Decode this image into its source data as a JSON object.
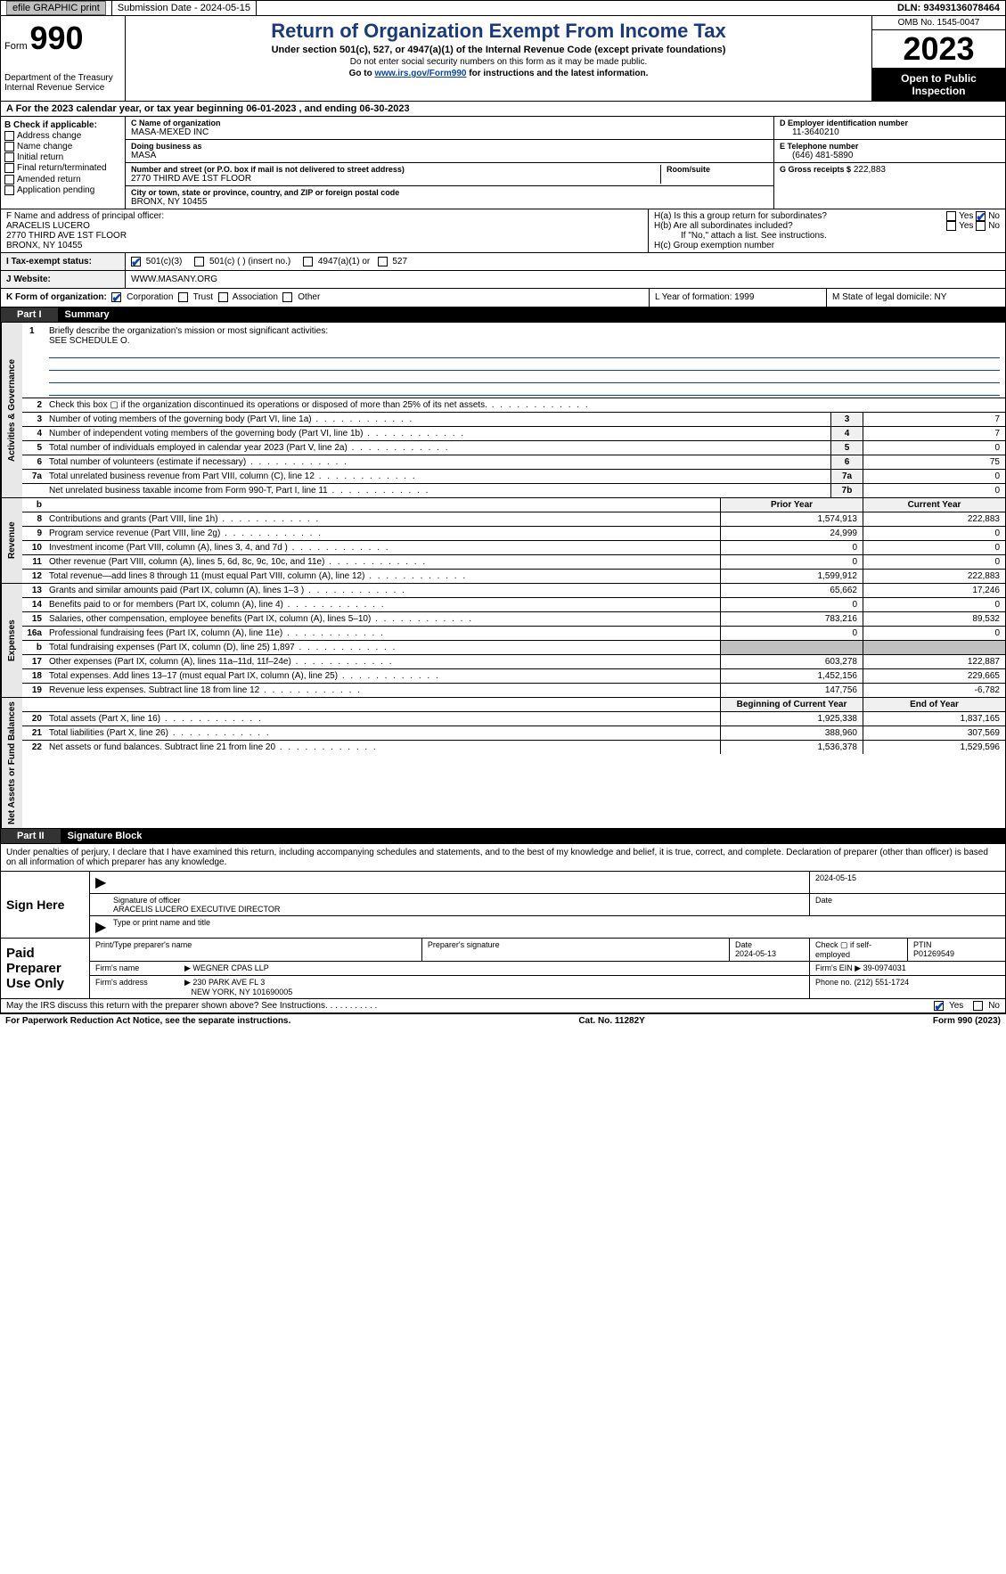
{
  "topbar": {
    "efile_label": "efile GRAPHIC print",
    "submission_label": "Submission Date - 2024-05-15",
    "dln_label": "DLN: 93493136078464"
  },
  "header": {
    "form_word": "Form",
    "form_number": "990",
    "dept": "Department of the Treasury\nInternal Revenue Service",
    "title": "Return of Organization Exempt From Income Tax",
    "subtitle": "Under section 501(c), 527, or 4947(a)(1) of the Internal Revenue Code (except private foundations)",
    "note1": "Do not enter social security numbers on this form as it may be made public.",
    "note2_prefix": "Go to ",
    "note2_link": "www.irs.gov/Form990",
    "note2_suffix": " for instructions and the latest information.",
    "omb": "OMB No. 1545-0047",
    "tax_year": "2023",
    "open_public": "Open to Public Inspection"
  },
  "rowA": "A For the 2023 calendar year, or tax year beginning 06-01-2023    , and ending 06-30-2023",
  "sectionB": {
    "header": "B Check if applicable:",
    "items": [
      "Address change",
      "Name change",
      "Initial return",
      "Final return/terminated",
      "Amended return",
      "Application pending"
    ]
  },
  "sectionC": {
    "name_label": "C Name of organization",
    "name": "MASA-MEXED INC",
    "dba_label": "Doing business as",
    "dba": "MASA",
    "street_label": "Number and street (or P.O. box if mail is not delivered to street address)",
    "street": "2770 THIRD AVE 1ST FLOOR",
    "room_label": "Room/suite",
    "city_label": "City or town, state or province, country, and ZIP or foreign postal code",
    "city": "BRONX, NY  10455"
  },
  "sectionD": {
    "label": "D Employer identification number",
    "value": "11-3640210"
  },
  "sectionE": {
    "label": "E Telephone number",
    "value": "(646) 481-5890"
  },
  "sectionG": {
    "label": "G Gross receipts $",
    "value": "222,883"
  },
  "officer": {
    "label": "F  Name and address of principal officer:",
    "name": "ARACELIS LUCERO",
    "street": "2770 THIRD AVE 1ST FLOOR",
    "city": "BRONX, NY  10455"
  },
  "sectionH": {
    "a": "H(a)  Is this a group return for subordinates?",
    "b": "H(b)  Are all subordinates included?",
    "b_note": "If \"No,\" attach a list. See instructions.",
    "c": "H(c)  Group exemption number",
    "yes": "Yes",
    "no": "No"
  },
  "statusI": {
    "label": "I   Tax-exempt status:",
    "c3": "501(c)(3)",
    "c_other": "501(c) (  ) (insert no.)",
    "a4947": "4947(a)(1) or",
    "s527": "527"
  },
  "website": {
    "label": "J   Website:",
    "value": "WWW.MASANY.ORG"
  },
  "formK": {
    "label": "K Form of organization:",
    "corp": "Corporation",
    "trust": "Trust",
    "assoc": "Association",
    "other": "Other",
    "L": "L Year of formation: 1999",
    "M": "M State of legal domicile: NY"
  },
  "partI": {
    "tab": "Part I",
    "title": "Summary"
  },
  "mission": {
    "n": "1",
    "label": "Briefly describe the organization's mission or most significant activities:",
    "value": "SEE SCHEDULE O."
  },
  "gov_rows": [
    {
      "n": "2",
      "txt": "Check this box ▢ if the organization discontinued its operations or disposed of more than 25% of its net assets.",
      "box": "",
      "val": ""
    },
    {
      "n": "3",
      "txt": "Number of voting members of the governing body (Part VI, line 1a)",
      "box": "3",
      "val": "7"
    },
    {
      "n": "4",
      "txt": "Number of independent voting members of the governing body (Part VI, line 1b)",
      "box": "4",
      "val": "7"
    },
    {
      "n": "5",
      "txt": "Total number of individuals employed in calendar year 2023 (Part V, line 2a)",
      "box": "5",
      "val": "0"
    },
    {
      "n": "6",
      "txt": "Total number of volunteers (estimate if necessary)",
      "box": "6",
      "val": "75"
    },
    {
      "n": "7a",
      "txt": "Total unrelated business revenue from Part VIII, column (C), line 12",
      "box": "7a",
      "val": "0"
    },
    {
      "n": "",
      "txt": "Net unrelated business taxable income from Form 990-T, Part I, line 11",
      "box": "7b",
      "val": "0"
    }
  ],
  "rev_header": {
    "n": "b",
    "txt": "",
    "prior": "Prior Year",
    "curr": "Current Year"
  },
  "rev_rows": [
    {
      "n": "8",
      "txt": "Contributions and grants (Part VIII, line 1h)",
      "prior": "1,574,913",
      "curr": "222,883"
    },
    {
      "n": "9",
      "txt": "Program service revenue (Part VIII, line 2g)",
      "prior": "24,999",
      "curr": "0"
    },
    {
      "n": "10",
      "txt": "Investment income (Part VIII, column (A), lines 3, 4, and 7d )",
      "prior": "0",
      "curr": "0"
    },
    {
      "n": "11",
      "txt": "Other revenue (Part VIII, column (A), lines 5, 6d, 8c, 9c, 10c, and 11e)",
      "prior": "0",
      "curr": "0"
    },
    {
      "n": "12",
      "txt": "Total revenue—add lines 8 through 11 (must equal Part VIII, column (A), line 12)",
      "prior": "1,599,912",
      "curr": "222,883"
    }
  ],
  "exp_rows": [
    {
      "n": "13",
      "txt": "Grants and similar amounts paid (Part IX, column (A), lines 1–3 )",
      "prior": "65,662",
      "curr": "17,246"
    },
    {
      "n": "14",
      "txt": "Benefits paid to or for members (Part IX, column (A), line 4)",
      "prior": "0",
      "curr": "0"
    },
    {
      "n": "15",
      "txt": "Salaries, other compensation, employee benefits (Part IX, column (A), lines 5–10)",
      "prior": "783,216",
      "curr": "89,532"
    },
    {
      "n": "16a",
      "txt": "Professional fundraising fees (Part IX, column (A), line 11e)",
      "prior": "0",
      "curr": "0"
    },
    {
      "n": "b",
      "txt": "Total fundraising expenses (Part IX, column (D), line 25) 1,897",
      "prior": "",
      "curr": "",
      "shade": true
    },
    {
      "n": "17",
      "txt": "Other expenses (Part IX, column (A), lines 11a–11d, 11f–24e)",
      "prior": "603,278",
      "curr": "122,887"
    },
    {
      "n": "18",
      "txt": "Total expenses. Add lines 13–17 (must equal Part IX, column (A), line 25)",
      "prior": "1,452,156",
      "curr": "229,665"
    },
    {
      "n": "19",
      "txt": "Revenue less expenses. Subtract line 18 from line 12",
      "prior": "147,756",
      "curr": "-6,782"
    }
  ],
  "net_header": {
    "prior": "Beginning of Current Year",
    "curr": "End of Year"
  },
  "net_rows": [
    {
      "n": "20",
      "txt": "Total assets (Part X, line 16)",
      "prior": "1,925,338",
      "curr": "1,837,165"
    },
    {
      "n": "21",
      "txt": "Total liabilities (Part X, line 26)",
      "prior": "388,960",
      "curr": "307,569"
    },
    {
      "n": "22",
      "txt": "Net assets or fund balances. Subtract line 21 from line 20",
      "prior": "1,536,378",
      "curr": "1,529,596"
    }
  ],
  "partII": {
    "tab": "Part II",
    "title": "Signature Block"
  },
  "sig_intro": "Under penalties of perjury, I declare that I have examined this return, including accompanying schedules and statements, and to the best of my knowledge and belief, it is true, correct, and complete. Declaration of preparer (other than officer) is based on all information of which preparer has any knowledge.",
  "sign_here": {
    "label": "Sign Here",
    "date": "2024-05-15",
    "sig_label": "Signature of officer",
    "name": "ARACELIS LUCERO  EXECUTIVE DIRECTOR",
    "type_label": "Type or print name and title",
    "date_label": "Date"
  },
  "preparer": {
    "label": "Paid Preparer Use Only",
    "print_label": "Print/Type preparer's name",
    "sig_label": "Preparer's signature",
    "date_label": "Date",
    "date": "2024-05-13",
    "check_label": "Check ▢ if self-employed",
    "ptin_label": "PTIN",
    "ptin": "P01269549",
    "firm_name_label": "Firm's name",
    "firm_name": "WEGNER CPAS LLP",
    "firm_ein_label": "Firm's EIN",
    "firm_ein": "39-0974031",
    "firm_addr_label": "Firm's address",
    "firm_addr": "230 PARK AVE FL 3",
    "firm_city": "NEW YORK, NY  101690005",
    "phone_label": "Phone no.",
    "phone": "(212) 551-1724"
  },
  "discuss": {
    "text": "May the IRS discuss this return with the preparer shown above? See Instructions.",
    "yes": "Yes",
    "no": "No"
  },
  "footer": {
    "left": "For Paperwork Reduction Act Notice, see the separate instructions.",
    "mid": "Cat. No. 11282Y",
    "right_prefix": "Form ",
    "right_form": "990",
    "right_suffix": " (2023)"
  },
  "vlabels": {
    "gov": "Activities & Governance",
    "rev": "Revenue",
    "exp": "Expenses",
    "net": "Net Assets or Fund Balances"
  }
}
